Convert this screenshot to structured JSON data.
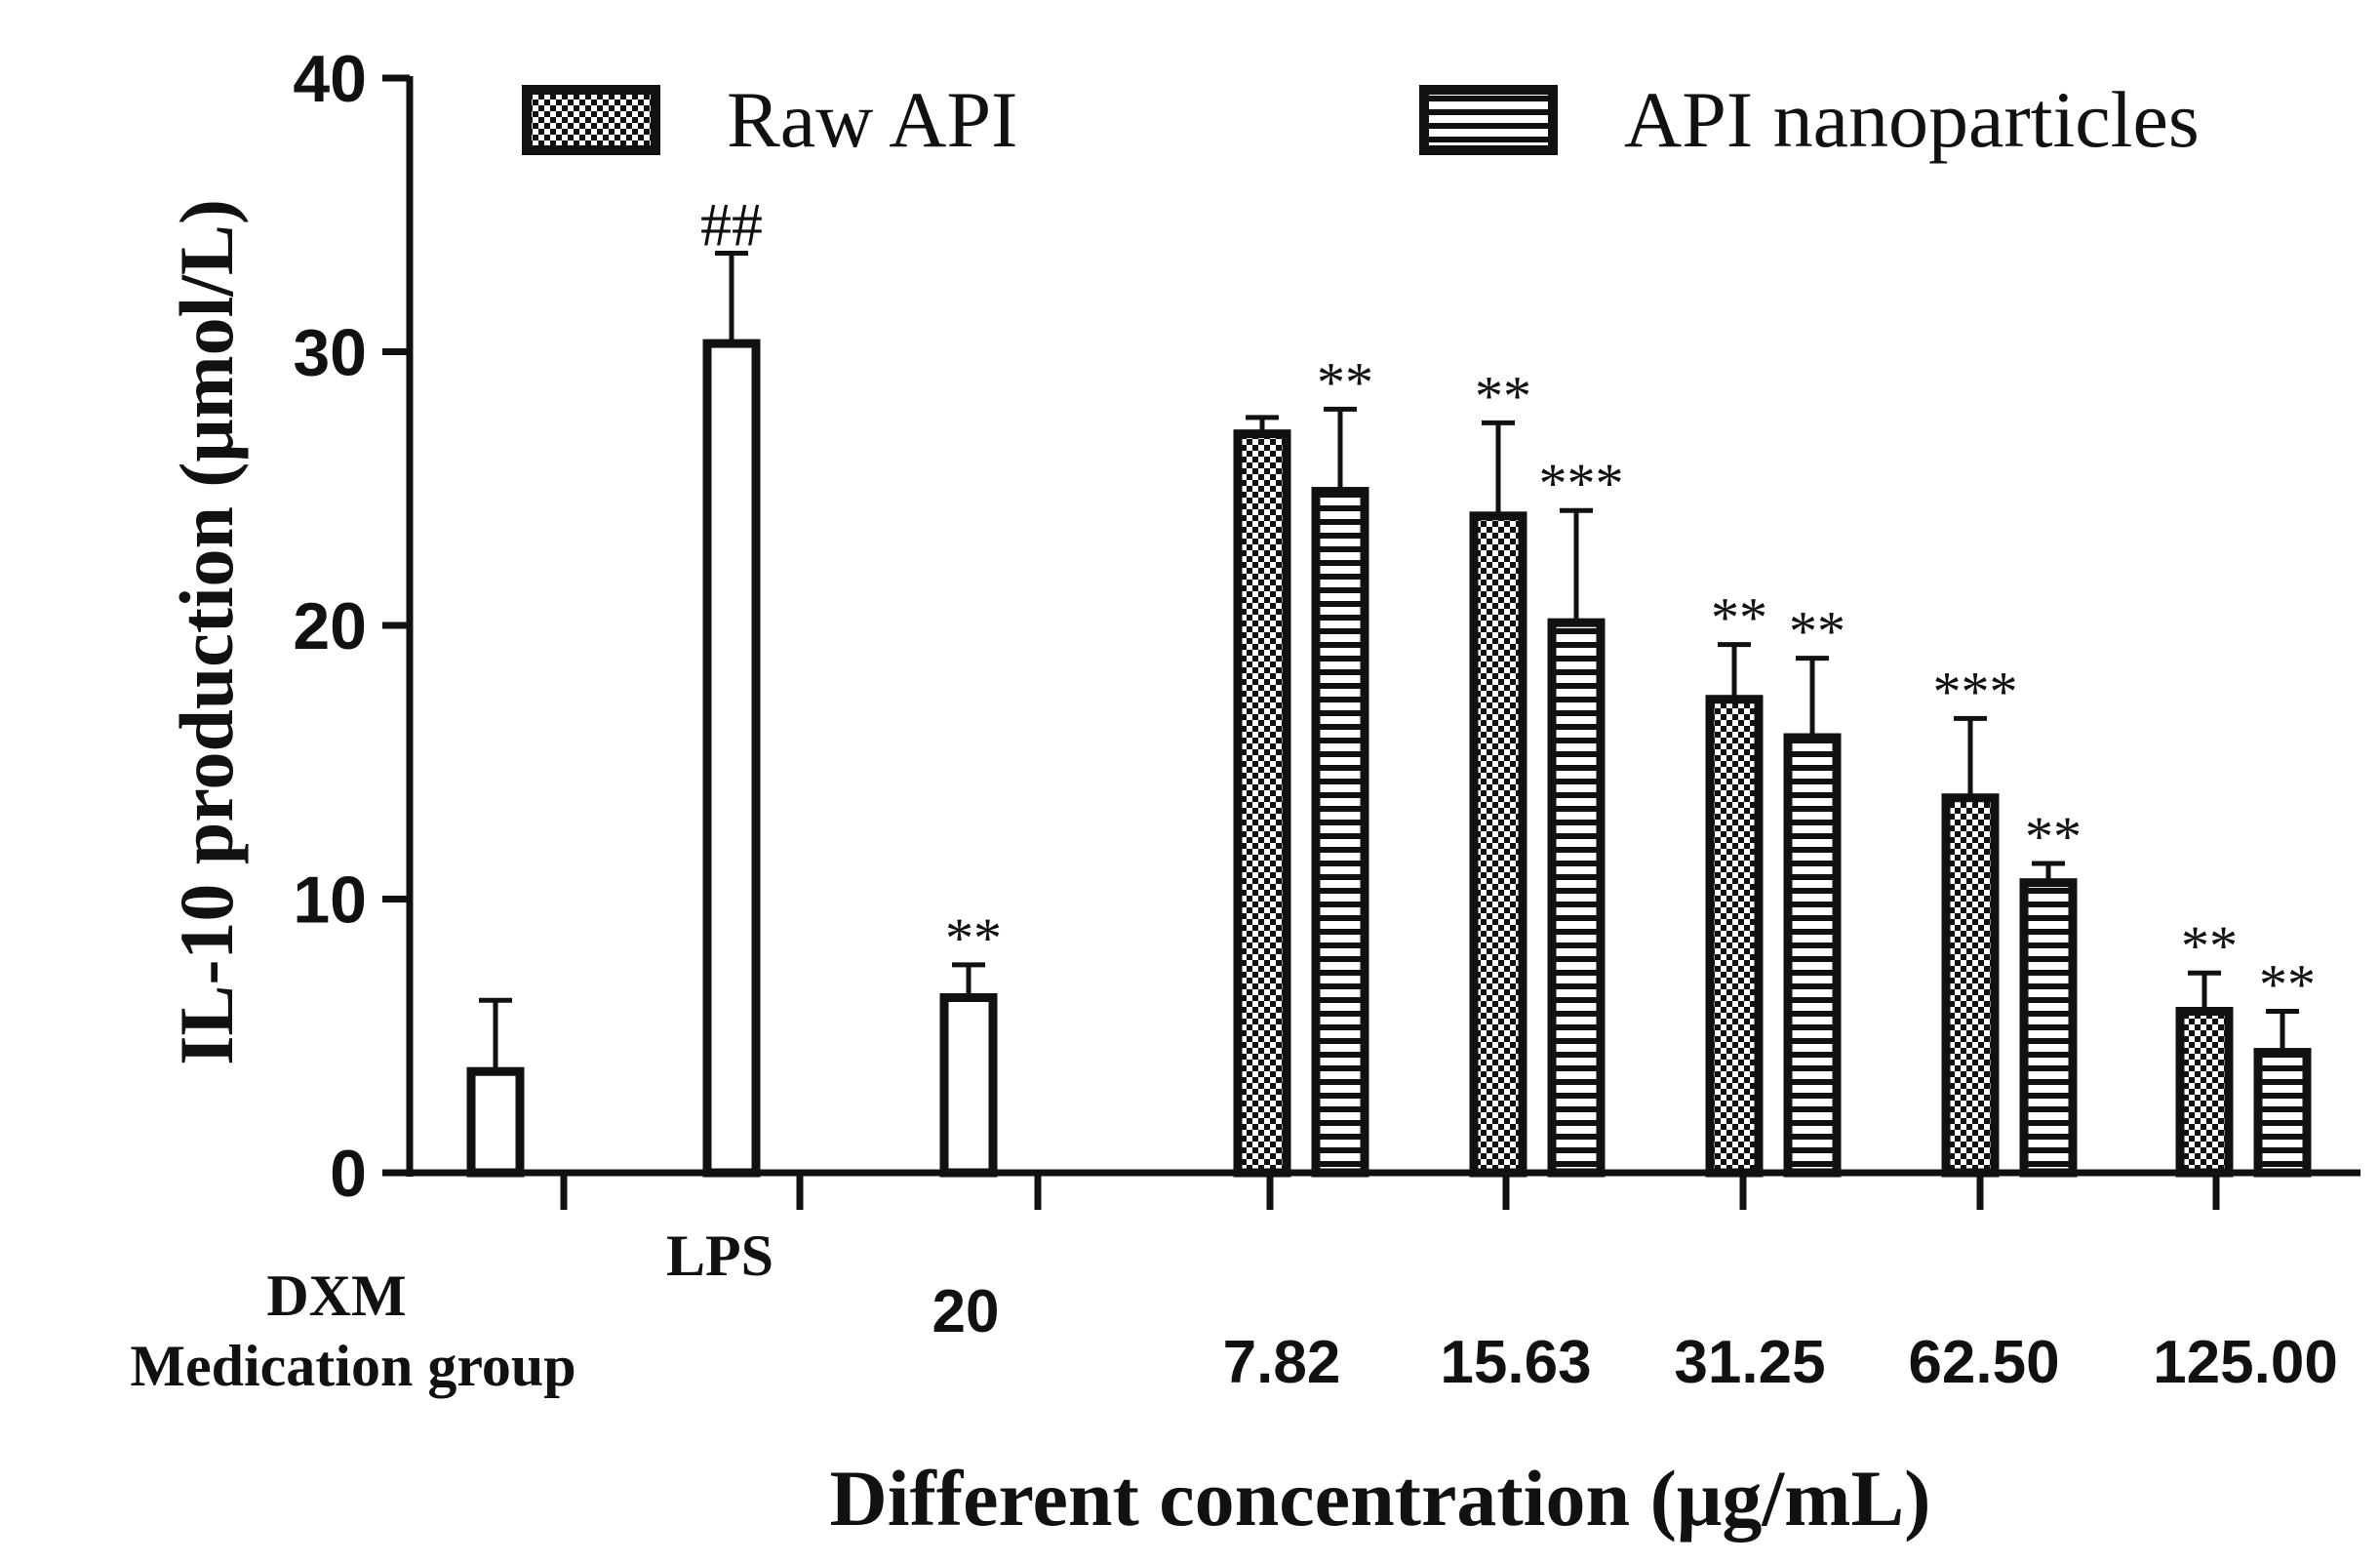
{
  "chart_data": {
    "type": "bar",
    "xlabel": "Different concentration (μg/mL)",
    "ylabel": "IL-10 production (μmol/L)",
    "ylim": [
      0,
      40
    ],
    "yticks": [
      "0",
      "10",
      "20",
      "30",
      "40"
    ],
    "legend": {
      "placement": "top",
      "entries": [
        {
          "name": "Raw API",
          "pattern": "checker"
        },
        {
          "name": "API nanoparticles",
          "pattern": "horizontal-stripes"
        }
      ]
    },
    "x_labels": [
      {
        "text": "DXM"
      },
      {
        "text": "Medication group"
      },
      {
        "text": "LPS"
      },
      {
        "text": "20"
      },
      {
        "text": "7.82"
      },
      {
        "text": "15.63"
      },
      {
        "text": "31.25"
      },
      {
        "text": "62.50"
      },
      {
        "text": "125.00"
      }
    ],
    "control_bars": [
      {
        "group": "DXM",
        "value": 3.7,
        "error": 2.6,
        "annotation": ""
      },
      {
        "group": "LPS",
        "value": 30.3,
        "error": 3.3,
        "annotation": "##"
      },
      {
        "group": "20",
        "value": 6.4,
        "error": 1.2,
        "annotation": "**"
      }
    ],
    "categories": [
      "7.82",
      "15.63",
      "31.25",
      "62.50",
      "125.00"
    ],
    "series": [
      {
        "name": "Raw API",
        "values": [
          27.0,
          24.0,
          17.3,
          13.7,
          5.9
        ],
        "errors": [
          0.6,
          3.4,
          2.0,
          2.9,
          1.4
        ],
        "annotations": [
          "",
          "**",
          "**",
          "***",
          "**"
        ]
      },
      {
        "name": "API nanoparticles",
        "values": [
          24.9,
          20.1,
          15.9,
          10.6,
          4.4
        ],
        "errors": [
          3.0,
          4.1,
          2.9,
          0.7,
          1.5
        ],
        "annotations": [
          "**",
          "***",
          "**",
          "**",
          "**"
        ]
      }
    ],
    "grid": false
  }
}
